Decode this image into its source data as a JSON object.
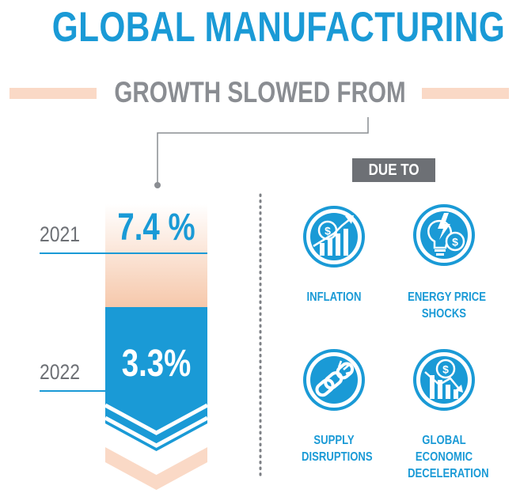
{
  "colors": {
    "blue": "#1a9ad6",
    "peach": "#fad9c6",
    "gray": "#8a8d92",
    "dark_gray": "#6d7075",
    "white": "#ffffff"
  },
  "title": "GLOBAL MANUFACTURING",
  "subtitle": "GROWTH SLOWED FROM",
  "due_to": "DUE TO",
  "years": [
    {
      "year": "2021",
      "value": "7.4 %"
    },
    {
      "year": "2022",
      "value": "3.3%"
    }
  ],
  "factors": [
    {
      "icon": "inflation-icon",
      "lines": [
        "INFLATION"
      ]
    },
    {
      "icon": "energy-price-icon",
      "lines": [
        "ENERGY PRICE",
        "SHOCKS"
      ]
    },
    {
      "icon": "broken-chain-icon",
      "lines": [
        "SUPPLY",
        "DISRUPTIONS"
      ]
    },
    {
      "icon": "economic-decline-icon",
      "lines": [
        "GLOBAL",
        "ECONOMIC",
        "DECELERATION"
      ]
    }
  ]
}
